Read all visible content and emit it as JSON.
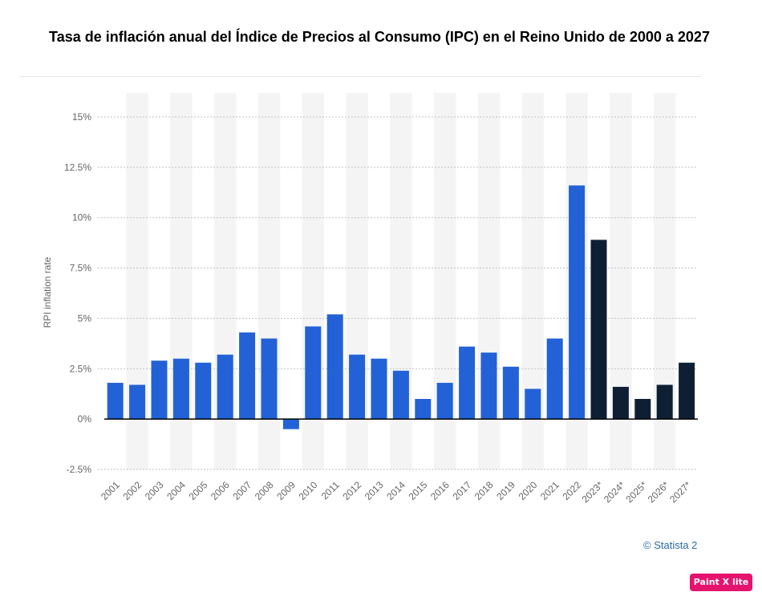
{
  "chart_data": {
    "type": "bar",
    "title": "Tasa de inflación anual del Índice de Precios al Consumo (IPC) en el Reino Unido de 2000 a 2027",
    "xlabel": "",
    "ylabel": "RPI inflation rate",
    "ylim": [
      -2.5,
      15
    ],
    "yticks": [
      "15%",
      "12.5%",
      "10%",
      "7.5%",
      "5%",
      "2.5%",
      "0%",
      "-2.5%"
    ],
    "grid": true,
    "categories": [
      "2001",
      "2002",
      "2003",
      "2004",
      "2005",
      "2006",
      "2007",
      "2008",
      "2009",
      "2010",
      "2011",
      "2012",
      "2013",
      "2014",
      "2015",
      "2016",
      "2017",
      "2018",
      "2019",
      "2020",
      "2021",
      "2022",
      "2023*",
      "2024*",
      "2025*",
      "2026*",
      "2027*"
    ],
    "values": [
      1.8,
      1.7,
      2.9,
      3.0,
      2.8,
      3.2,
      4.3,
      4.0,
      -0.5,
      4.6,
      5.2,
      3.2,
      3.0,
      2.4,
      1.0,
      1.8,
      3.6,
      3.3,
      2.6,
      1.5,
      4.0,
      11.6,
      8.9,
      1.6,
      1.0,
      1.7,
      2.8
    ],
    "colors": {
      "actual": "#2262d6",
      "forecast": "#0f1f33",
      "grid": "#bfbfbf",
      "band": "#f4f4f4",
      "axis_text": "#666666"
    }
  },
  "footer": {
    "credit": "© Statista 2",
    "badge": "Paint X lite"
  }
}
